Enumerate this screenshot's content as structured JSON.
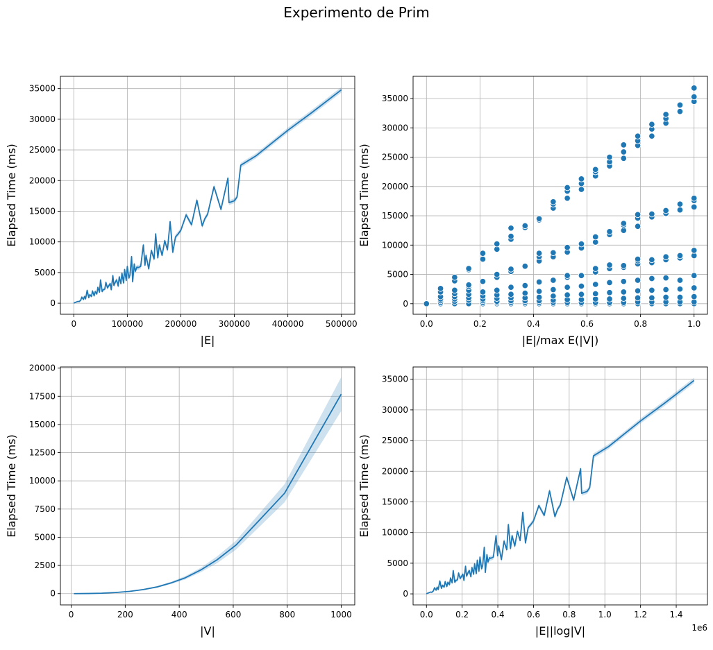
{
  "figure": {
    "suptitle": "Experimento de Prim"
  },
  "colors": {
    "line": "#1f77b4",
    "band": "#1f77b4",
    "grid": "#b0b0b0",
    "axis": "#000000"
  },
  "chart_data": [
    {
      "id": "ax1",
      "type": "line",
      "xlabel": "|E|",
      "ylabel": "Elapsed Time (ms)",
      "xlim": [
        -25000,
        525000
      ],
      "ylim": [
        -1800,
        37000
      ],
      "xticks": [
        0,
        100000,
        200000,
        300000,
        400000,
        500000
      ],
      "xticklabels": [
        "0",
        "100000",
        "200000",
        "300000",
        "400000",
        "500000"
      ],
      "yticks": [
        0,
        5000,
        10000,
        15000,
        20000,
        25000,
        30000,
        35000
      ],
      "yticklabels": [
        "0",
        "5000",
        "10000",
        "15000",
        "20000",
        "25000",
        "30000",
        "35000"
      ],
      "grid": true,
      "confidence_band": true,
      "x": [
        0,
        2000,
        5000,
        8000,
        10000,
        13000,
        15000,
        18000,
        20000,
        22000,
        25000,
        28000,
        30000,
        33000,
        35000,
        38000,
        40000,
        43000,
        45000,
        48000,
        50000,
        53000,
        55000,
        58000,
        60000,
        63000,
        65000,
        68000,
        70000,
        73000,
        75000,
        78000,
        80000,
        83000,
        85000,
        88000,
        90000,
        93000,
        95000,
        98000,
        100000,
        103000,
        105000,
        108000,
        110000,
        113000,
        115000,
        118000,
        120000,
        125000,
        130000,
        133000,
        135000,
        140000,
        145000,
        150000,
        153000,
        157000,
        160000,
        165000,
        170000,
        175000,
        180000,
        185000,
        190000,
        195000,
        200000,
        210000,
        220000,
        230000,
        240000,
        245000,
        250000,
        262000,
        275000,
        288000,
        290000,
        300000,
        305000,
        312000,
        340000,
        370000,
        400000,
        445000,
        500000
      ],
      "values": [
        0,
        100,
        200,
        300,
        250,
        500,
        1000,
        600,
        1100,
        700,
        2100,
        900,
        1400,
        1100,
        2000,
        1200,
        1900,
        1500,
        2600,
        1800,
        3800,
        1900,
        2200,
        2300,
        3400,
        2500,
        2800,
        3200,
        2200,
        4500,
        2900,
        3500,
        3800,
        2800,
        4300,
        3200,
        4900,
        3300,
        5500,
        3700,
        6000,
        4100,
        4600,
        7600,
        3500,
        6400,
        5200,
        5900,
        5800,
        6000,
        9500,
        6200,
        7800,
        5600,
        8600,
        7200,
        11300,
        7400,
        9500,
        7800,
        10200,
        8700,
        13300,
        8300,
        10800,
        11300,
        11900,
        14400,
        12800,
        16800,
        12600,
        13800,
        14500,
        19000,
        15300,
        20400,
        16400,
        16700,
        17300,
        22500,
        24000,
        26100,
        28200,
        31100,
        34800
      ],
      "band": [
        0,
        50,
        80,
        100,
        100,
        120,
        150,
        150,
        180,
        180,
        200,
        200,
        220,
        220,
        250,
        250,
        260,
        260,
        280,
        280,
        300,
        300,
        300,
        300,
        320,
        320,
        320,
        330,
        330,
        340,
        340,
        350,
        350,
        350,
        360,
        360,
        370,
        370,
        380,
        380,
        380,
        390,
        390,
        400,
        400,
        400,
        400,
        400,
        400,
        400,
        400,
        400,
        400,
        400,
        400,
        400,
        400,
        400,
        400,
        400,
        400,
        400,
        400,
        400,
        400,
        400,
        400,
        400,
        400,
        400,
        400,
        400,
        400,
        400,
        400,
        400,
        400,
        400,
        400,
        400,
        400,
        400,
        420,
        440,
        450
      ]
    },
    {
      "id": "ax2",
      "type": "scatter",
      "xlabel": "|E|/max E(|V|)",
      "ylabel": "Elapsed Time (ms)",
      "xlim": [
        -0.05,
        1.05
      ],
      "ylim": [
        -1800,
        38800
      ],
      "xticks": [
        0.0,
        0.2,
        0.4,
        0.6,
        0.8,
        1.0
      ],
      "xticklabels": [
        "0.0",
        "0.2",
        "0.4",
        "0.6",
        "0.8",
        "1.0"
      ],
      "yticks": [
        0,
        5000,
        10000,
        15000,
        20000,
        25000,
        30000,
        35000
      ],
      "yticklabels": [
        "0",
        "5000",
        "10000",
        "15000",
        "20000",
        "25000",
        "30000",
        "35000"
      ],
      "grid": true,
      "groups": [
        {
          "x": 0.0,
          "y": [
            0,
            0,
            0,
            0,
            0,
            0
          ]
        },
        {
          "x": 0.0526,
          "y": [
            0,
            0,
            0,
            200,
            500,
            800,
            1200,
            2000,
            2600
          ]
        },
        {
          "x": 0.1053,
          "y": [
            0,
            0,
            0,
            0,
            0,
            400,
            800,
            1200,
            1700,
            2300,
            3900,
            4500
          ]
        },
        {
          "x": 0.1579,
          "y": [
            0,
            0,
            0,
            0,
            0,
            600,
            1000,
            1600,
            2300,
            2900,
            3200,
            5800,
            6000
          ]
        },
        {
          "x": 0.2105,
          "y": [
            0,
            0,
            0,
            0,
            0,
            200,
            500,
            800,
            1300,
            2000,
            3800,
            7600,
            8600
          ]
        },
        {
          "x": 0.2632,
          "y": [
            0,
            0,
            0,
            0,
            200,
            400,
            900,
            1500,
            2300,
            4500,
            5000,
            9300,
            10200
          ]
        },
        {
          "x": 0.3158,
          "y": [
            0,
            0,
            0,
            0,
            200,
            500,
            1000,
            1600,
            2800,
            5500,
            5900,
            11000,
            11500,
            12900
          ]
        },
        {
          "x": 0.3684,
          "y": [
            0,
            0,
            0,
            0,
            200,
            500,
            1000,
            1800,
            3100,
            6400,
            13000,
            13300
          ]
        },
        {
          "x": 0.4211,
          "y": [
            0,
            0,
            0,
            200,
            500,
            1100,
            2100,
            3700,
            7300,
            8000,
            8600,
            14300,
            14500
          ]
        },
        {
          "x": 0.4737,
          "y": [
            0,
            0,
            0,
            200,
            600,
            1300,
            2400,
            4000,
            8000,
            8700,
            16300,
            17000,
            17400
          ]
        },
        {
          "x": 0.5263,
          "y": [
            0,
            0,
            0,
            200,
            700,
            1500,
            2800,
            4500,
            4800,
            8800,
            9600,
            18000,
            19200,
            19800
          ]
        },
        {
          "x": 0.5789,
          "y": [
            0,
            0,
            0,
            200,
            700,
            1600,
            3000,
            4800,
            9500,
            10200,
            19500,
            20500,
            21300
          ]
        },
        {
          "x": 0.6316,
          "y": [
            0,
            0,
            0,
            200,
            800,
            1700,
            3300,
            5400,
            6000,
            10500,
            11400,
            21800,
            22500,
            22900
          ]
        },
        {
          "x": 0.6842,
          "y": [
            0,
            0,
            0,
            200,
            800,
            1900,
            3600,
            6000,
            6600,
            11800,
            12300,
            23500,
            24200,
            25000
          ]
        },
        {
          "x": 0.7368,
          "y": [
            0,
            0,
            0,
            200,
            900,
            2000,
            3800,
            6200,
            6500,
            12500,
            13400,
            13700,
            24800,
            25900,
            27100
          ]
        },
        {
          "x": 0.7895,
          "y": [
            0,
            0,
            0,
            300,
            1000,
            2200,
            4000,
            6800,
            7300,
            7600,
            13200,
            14600,
            15200,
            27000,
            27800,
            28600
          ]
        },
        {
          "x": 0.8421,
          "y": [
            0,
            0,
            0,
            300,
            1000,
            2300,
            4300,
            7000,
            7500,
            14800,
            15300,
            28600,
            29800,
            30600
          ]
        },
        {
          "x": 0.8947,
          "y": [
            0,
            0,
            0,
            300,
            1100,
            2400,
            4400,
            7500,
            8000,
            15400,
            15900,
            30800,
            31600,
            32300
          ]
        },
        {
          "x": 0.9474,
          "y": [
            0,
            0,
            0,
            300,
            1100,
            2500,
            4000,
            7800,
            8200,
            16000,
            17000,
            32800,
            33900
          ]
        },
        {
          "x": 1.0,
          "y": [
            0,
            0,
            0,
            300,
            1200,
            2700,
            4800,
            8200,
            9100,
            16500,
            17600,
            18000,
            34500,
            35300,
            36800
          ]
        }
      ]
    },
    {
      "id": "ax3",
      "type": "line",
      "xlabel": "|V|",
      "ylabel": "Elapsed Time (ms)",
      "xlim": [
        -40,
        1050
      ],
      "ylim": [
        -1000,
        20100
      ],
      "xticks": [
        0,
        200,
        400,
        600,
        800,
        1000
      ],
      "xticklabels": [
        "0",
        "200",
        "400",
        "600",
        "800",
        "1000"
      ],
      "yticks": [
        0,
        2500,
        5000,
        7500,
        10000,
        12500,
        15000,
        17500,
        20000
      ],
      "yticklabels": [
        "0",
        "2500",
        "5000",
        "7500",
        "10000",
        "12500",
        "15000",
        "17500",
        "20000"
      ],
      "grid": true,
      "confidence_band": true,
      "x": [
        10,
        61,
        113,
        164,
        216,
        267,
        319,
        370,
        422,
        480,
        540,
        610,
        700,
        790,
        1000
      ],
      "values": [
        0,
        10,
        40,
        100,
        200,
        360,
        600,
        950,
        1400,
        2100,
        3000,
        4300,
        6600,
        8900,
        17700
      ],
      "band": [
        0,
        5,
        10,
        20,
        40,
        60,
        80,
        100,
        150,
        200,
        300,
        400,
        600,
        800,
        1500
      ]
    },
    {
      "id": "ax4",
      "type": "line",
      "xlabel": "|E||log|V|",
      "ylabel": "Elapsed Time (ms)",
      "xlim": [
        -75000,
        1575000
      ],
      "ylim": [
        -1800,
        37000
      ],
      "xticks": [
        0,
        200000,
        400000,
        600000,
        800000,
        1000000,
        1200000,
        1400000
      ],
      "xticklabels": [
        "0.0",
        "0.2",
        "0.4",
        "0.6",
        "0.8",
        "1.0",
        "1.2",
        "1.4"
      ],
      "offset_text": "1e6",
      "yticks": [
        0,
        5000,
        10000,
        15000,
        20000,
        25000,
        30000,
        35000
      ],
      "yticklabels": [
        "0",
        "5000",
        "10000",
        "15000",
        "20000",
        "25000",
        "30000",
        "35000"
      ],
      "grid": true,
      "confidence_band": true,
      "x": [
        0,
        6000,
        15000,
        24000,
        30000,
        39000,
        45000,
        54000,
        60000,
        66000,
        75000,
        84000,
        90000,
        99000,
        105000,
        114000,
        120000,
        129000,
        135000,
        144000,
        150000,
        159000,
        165000,
        174000,
        180000,
        189000,
        195000,
        204000,
        210000,
        219000,
        225000,
        234000,
        240000,
        249000,
        255000,
        264000,
        270000,
        279000,
        285000,
        294000,
        300000,
        309000,
        315000,
        324000,
        330000,
        339000,
        345000,
        354000,
        360000,
        375000,
        390000,
        399000,
        405000,
        420000,
        435000,
        450000,
        459000,
        471000,
        480000,
        495000,
        510000,
        525000,
        540000,
        555000,
        570000,
        585000,
        600000,
        630000,
        660000,
        690000,
        720000,
        735000,
        750000,
        786000,
        825000,
        864000,
        870000,
        900000,
        915000,
        936000,
        1020000,
        1110000,
        1200000,
        1335000,
        1500000
      ],
      "values": [
        0,
        100,
        200,
        300,
        250,
        500,
        1000,
        600,
        1100,
        700,
        2100,
        900,
        1400,
        1100,
        2000,
        1200,
        1900,
        1500,
        2600,
        1800,
        3800,
        1900,
        2200,
        2300,
        3400,
        2500,
        2800,
        3200,
        2200,
        4500,
        2900,
        3500,
        3800,
        2800,
        4300,
        3200,
        4900,
        3300,
        5500,
        3700,
        6000,
        4100,
        4600,
        7600,
        3500,
        6400,
        5200,
        5900,
        5800,
        6000,
        9500,
        6200,
        7800,
        5600,
        8600,
        7200,
        11300,
        7400,
        9500,
        7800,
        10200,
        8700,
        13300,
        8300,
        10800,
        11300,
        11900,
        14400,
        12800,
        16800,
        12600,
        13800,
        14500,
        19000,
        15300,
        20400,
        16400,
        16700,
        17300,
        22500,
        24000,
        26100,
        28200,
        31100,
        34800
      ],
      "band": [
        0,
        50,
        80,
        100,
        100,
        120,
        150,
        150,
        180,
        180,
        200,
        200,
        220,
        220,
        250,
        250,
        260,
        260,
        280,
        280,
        300,
        300,
        300,
        300,
        320,
        320,
        320,
        330,
        330,
        340,
        340,
        350,
        350,
        350,
        360,
        360,
        370,
        370,
        380,
        380,
        380,
        390,
        390,
        400,
        400,
        400,
        400,
        400,
        400,
        400,
        400,
        400,
        400,
        400,
        400,
        400,
        400,
        400,
        400,
        400,
        400,
        400,
        400,
        400,
        400,
        400,
        400,
        400,
        400,
        400,
        400,
        400,
        400,
        400,
        400,
        400,
        400,
        400,
        400,
        400,
        400,
        400,
        420,
        440,
        450
      ]
    }
  ]
}
